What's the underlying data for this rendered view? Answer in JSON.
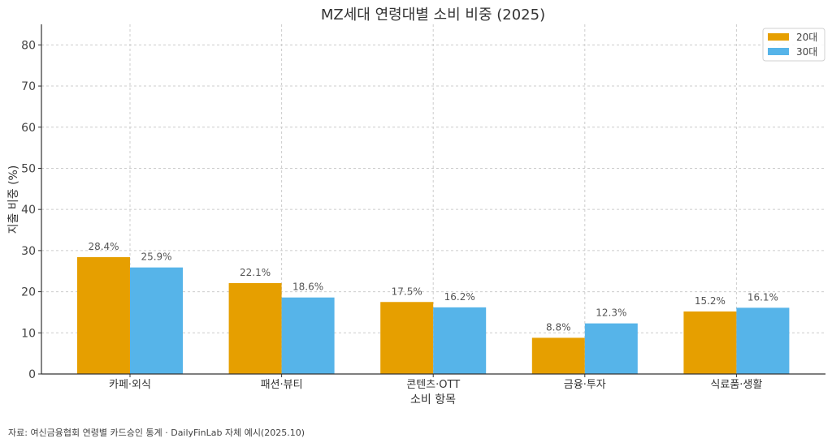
{
  "chart_data": {
    "type": "bar",
    "title": "MZ세대 연령대별 소비 비중 (2025)",
    "xlabel": "소비 항목",
    "ylabel": "지출 비중 (%)",
    "categories": [
      "카페·외식",
      "패션·뷰티",
      "콘텐츠·OTT",
      "금융·투자",
      "식료품·생활"
    ],
    "series": [
      {
        "name": "20대",
        "color": "#E69F00",
        "values": [
          28.4,
          22.1,
          17.5,
          8.8,
          15.2
        ]
      },
      {
        "name": "30대",
        "color": "#56B4E9",
        "values": [
          25.9,
          18.6,
          16.2,
          12.3,
          16.1
        ]
      }
    ],
    "value_labels": {
      "20대": [
        "28.4%",
        "22.1%",
        "17.5%",
        "8.8%",
        "15.2%"
      ],
      "30대": [
        "25.9%",
        "18.6%",
        "16.2%",
        "12.3%",
        "16.1%"
      ]
    },
    "ylim": [
      0,
      85
    ],
    "yticks": [
      0,
      10,
      20,
      30,
      40,
      50,
      60,
      70,
      80
    ],
    "grid": true,
    "legend_position": "upper right"
  },
  "footer": {
    "source": "자료: 여신금융협회 연령별 카드승인 통계 · DailyFinLab 자체 예시(2025.10)"
  }
}
